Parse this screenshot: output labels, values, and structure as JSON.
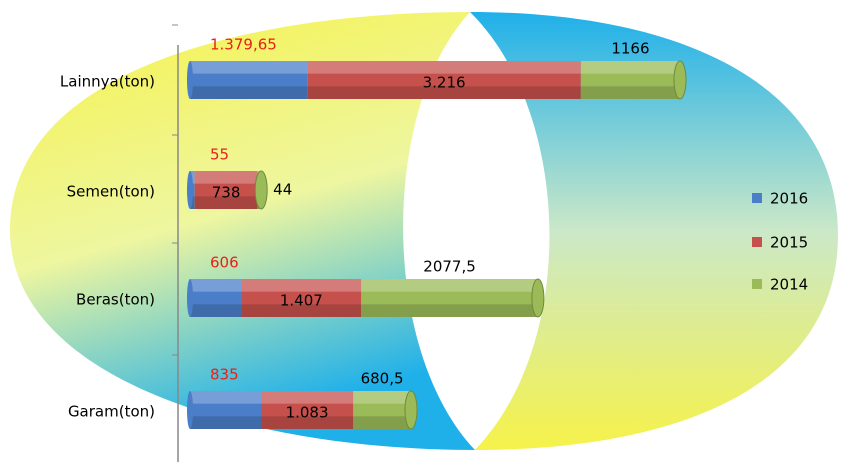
{
  "chart_data": {
    "type": "bar",
    "orientation": "horizontal",
    "stacked": true,
    "categories": [
      "Lainnya(ton)",
      "Semen(ton)",
      "Beras(ton)",
      "Garam(ton)"
    ],
    "series": [
      {
        "name": "2016",
        "color": "#4a7ec8",
        "values": [
          1379.65,
          55,
          606,
          835
        ],
        "value_labels": [
          "1.379,65",
          "55",
          "606",
          "835"
        ]
      },
      {
        "name": "2015",
        "color": "#c5504c",
        "values": [
          3216,
          738,
          1407,
          1083
        ],
        "value_labels": [
          "3.216",
          "738",
          "1.407",
          "1.083"
        ]
      },
      {
        "name": "2014",
        "color": "#9bbb59",
        "values": [
          1166,
          44,
          2077.5,
          680.5
        ],
        "value_labels": [
          "1166",
          "44",
          "2077,5",
          "680,5"
        ]
      }
    ],
    "legend": "right"
  }
}
